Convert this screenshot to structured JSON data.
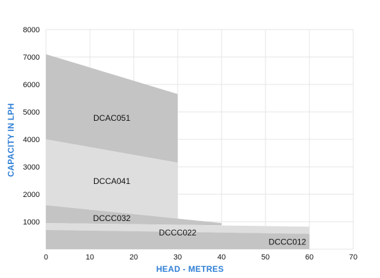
{
  "chart_data": {
    "type": "area",
    "title": "",
    "xlabel": "HEAD - METRES",
    "ylabel": "CAPACITY IN LPH",
    "xlim": [
      0,
      70
    ],
    "ylim": [
      0,
      8000
    ],
    "xticks": [
      "0",
      "10",
      "20",
      "30",
      "40",
      "50",
      "60",
      "70"
    ],
    "yticks": [
      "8000",
      "7000",
      "6000",
      "5000",
      "4000",
      "3000",
      "2000",
      "1000"
    ],
    "grid": true,
    "legend": "none",
    "series": [
      {
        "name": "DCAC051",
        "color": "#c4c4c4",
        "upper": [
          {
            "x": 0,
            "y": 7100
          },
          {
            "x": 30,
            "y": 5650
          }
        ],
        "lower": [
          {
            "x": 0,
            "y": 4000
          },
          {
            "x": 30,
            "y": 3150
          }
        ],
        "label_at": {
          "x": 15,
          "y": 4770
        }
      },
      {
        "name": "DCCA041",
        "color": "#dedede",
        "upper": [
          {
            "x": 0,
            "y": 4000
          },
          {
            "x": 30,
            "y": 3150
          }
        ],
        "lower": [
          {
            "x": 0,
            "y": 1600
          },
          {
            "x": 30,
            "y": 950
          }
        ],
        "label_at": {
          "x": 15,
          "y": 2470
        }
      },
      {
        "name": "DCCC032",
        "color": "#c4c4c4",
        "upper": [
          {
            "x": 0,
            "y": 1600
          },
          {
            "x": 40,
            "y": 950
          }
        ],
        "lower": [
          {
            "x": 0,
            "y": 950
          },
          {
            "x": 40,
            "y": 870
          }
        ],
        "label_at": {
          "x": 15,
          "y": 1130
        }
      },
      {
        "name": "DCCC022",
        "color": "#dedede",
        "upper": [
          {
            "x": 0,
            "y": 950
          },
          {
            "x": 60,
            "y": 820
          }
        ],
        "lower": [
          {
            "x": 0,
            "y": 700
          },
          {
            "x": 60,
            "y": 560
          }
        ],
        "label_at": {
          "x": 30,
          "y": 600
        }
      },
      {
        "name": "DCCC012",
        "color": "#c4c4c4",
        "upper": [
          {
            "x": 0,
            "y": 700
          },
          {
            "x": 60,
            "y": 560
          }
        ],
        "lower": [
          {
            "x": 0,
            "y": 0
          },
          {
            "x": 60,
            "y": 0
          }
        ],
        "label_at": {
          "x": 55,
          "y": 260
        }
      }
    ]
  }
}
